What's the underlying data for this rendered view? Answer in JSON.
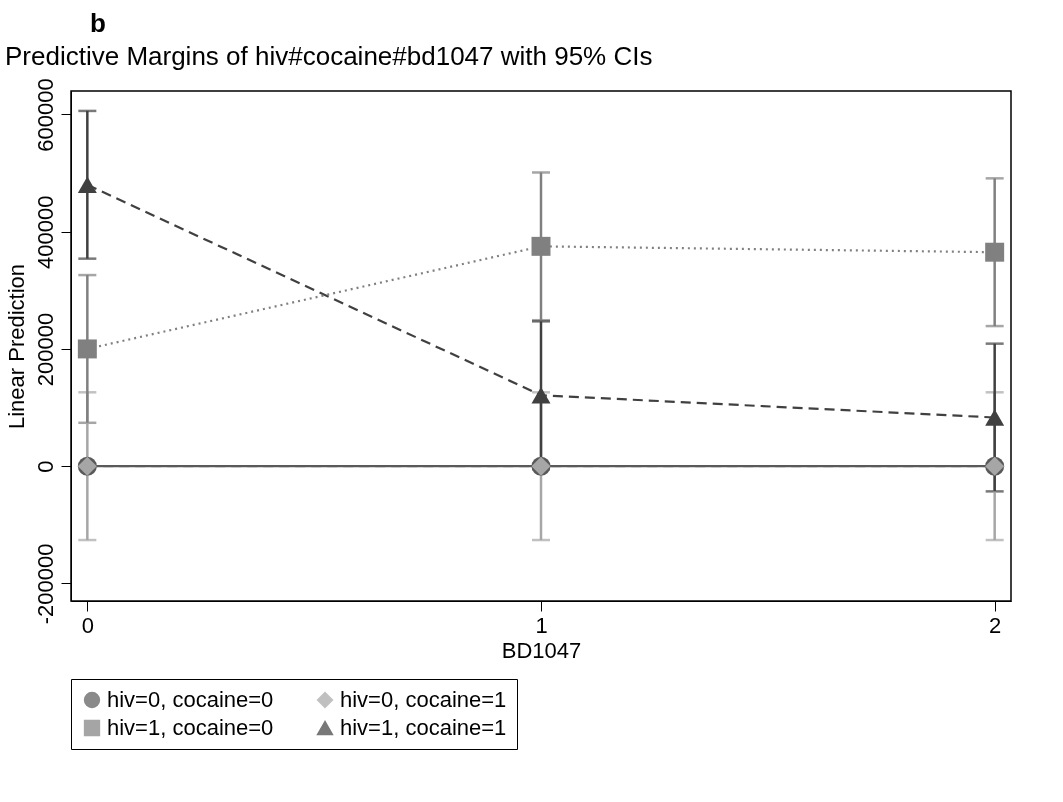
{
  "chart_data": {
    "type": "line",
    "title": "Predictive Margins of hiv#cocaine#bd1047 with 95% CIs",
    "xlabel": "BD1047",
    "ylabel": "Linear Prediction",
    "annotations": [
      "b"
    ],
    "x": [
      0,
      1,
      2
    ],
    "xlim": [
      -0.036,
      2.036
    ],
    "xticks": [
      0,
      1,
      2
    ],
    "ylim": [
      -230000,
      640000
    ],
    "yticks": [
      -200000,
      0,
      200000,
      400000,
      600000
    ],
    "grid": false,
    "legend": "bottom",
    "series": [
      {
        "name": "hiv=0, cocaine=0",
        "color": "#595959",
        "marker": "circle",
        "line_style": "solid",
        "values": [
          0,
          0,
          0
        ]
      },
      {
        "name": "hiv=0, cocaine=1",
        "color": "#a6a6a6",
        "marker": "diamond",
        "line_style": "dashed",
        "values": [
          0,
          0,
          0
        ],
        "errors": [
          126000,
          126000,
          126000
        ]
      },
      {
        "name": "hiv=1, cocaine=0",
        "color": "#808080",
        "marker": "square",
        "line_style": "dotted",
        "values": [
          200000,
          375000,
          365000
        ],
        "errors": [
          126000,
          126000,
          126000
        ]
      },
      {
        "name": "hiv=1, cocaine=1",
        "color": "#404040",
        "marker": "triangle",
        "line_style": "dashed",
        "values": [
          480000,
          121000,
          83000
        ],
        "errors": [
          126000,
          126000,
          126000
        ]
      }
    ]
  }
}
